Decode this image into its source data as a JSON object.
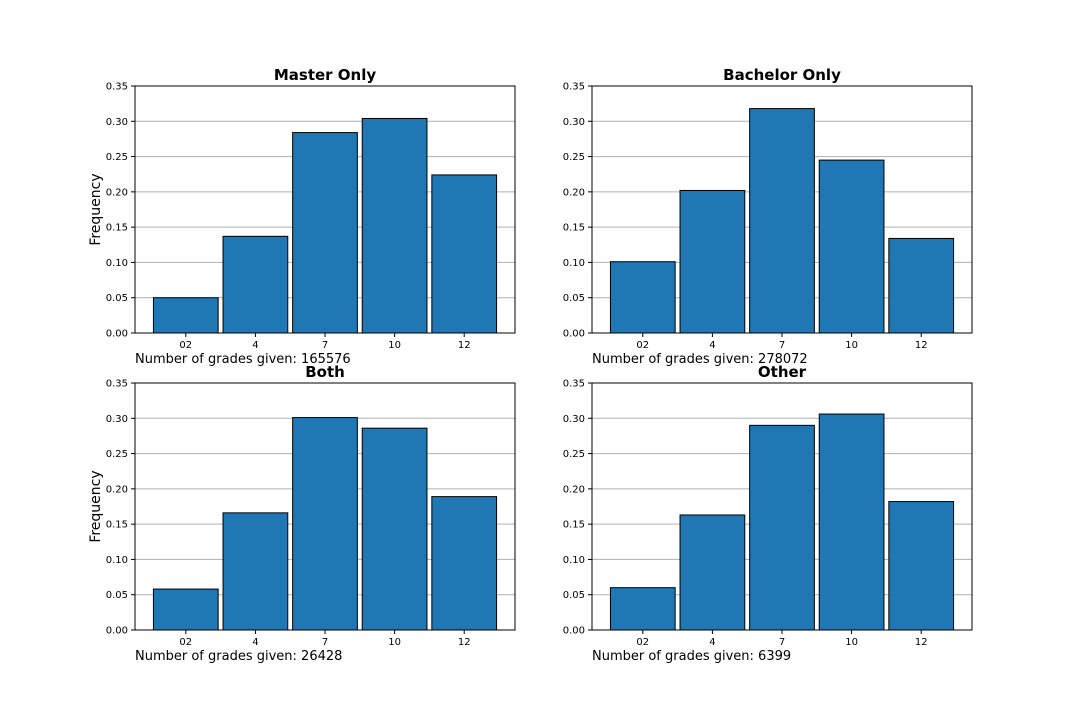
{
  "chart_data": [
    {
      "type": "bar",
      "title": "Master Only",
      "ylabel": "Frequency",
      "categories": [
        "02",
        "4",
        "7",
        "10",
        "12"
      ],
      "values": [
        0.05,
        0.137,
        0.284,
        0.304,
        0.224
      ],
      "ylim": [
        0,
        0.35
      ],
      "yticks": [
        "0.00",
        "0.05",
        "0.10",
        "0.15",
        "0.20",
        "0.25",
        "0.30",
        "0.35"
      ],
      "grid": "y",
      "bar_color": "#1f77b4",
      "count_text": "Number of grades given: 165576"
    },
    {
      "type": "bar",
      "title": "Bachelor Only",
      "ylabel": "",
      "categories": [
        "02",
        "4",
        "7",
        "10",
        "12"
      ],
      "values": [
        0.101,
        0.202,
        0.318,
        0.245,
        0.134
      ],
      "ylim": [
        0,
        0.35
      ],
      "yticks": [
        "0.00",
        "0.05",
        "0.10",
        "0.15",
        "0.20",
        "0.25",
        "0.30",
        "0.35"
      ],
      "grid": "y",
      "bar_color": "#1f77b4",
      "count_text": "Number of grades given: 278072"
    },
    {
      "type": "bar",
      "title": "Both",
      "ylabel": "Frequency",
      "categories": [
        "02",
        "4",
        "7",
        "10",
        "12"
      ],
      "values": [
        0.058,
        0.166,
        0.301,
        0.286,
        0.189
      ],
      "ylim": [
        0,
        0.35
      ],
      "yticks": [
        "0.00",
        "0.05",
        "0.10",
        "0.15",
        "0.20",
        "0.25",
        "0.30",
        "0.35"
      ],
      "grid": "y",
      "bar_color": "#1f77b4",
      "count_text": "Number of grades given: 26428"
    },
    {
      "type": "bar",
      "title": "Other",
      "ylabel": "",
      "categories": [
        "02",
        "4",
        "7",
        "10",
        "12"
      ],
      "values": [
        0.06,
        0.163,
        0.29,
        0.306,
        0.182
      ],
      "ylim": [
        0,
        0.35
      ],
      "yticks": [
        "0.00",
        "0.05",
        "0.10",
        "0.15",
        "0.20",
        "0.25",
        "0.30",
        "0.35"
      ],
      "grid": "y",
      "bar_color": "#1f77b4",
      "count_text": "Number of grades given: 6399"
    }
  ]
}
